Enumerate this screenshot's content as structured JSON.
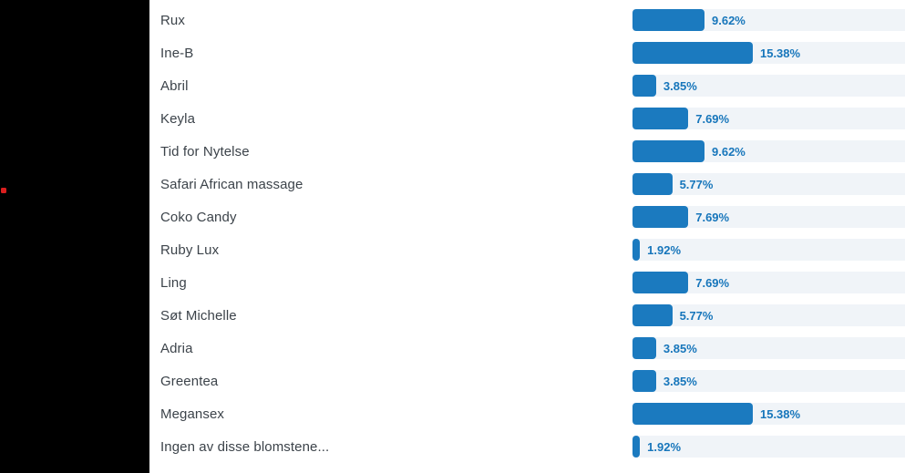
{
  "chart_data": {
    "type": "bar",
    "orientation": "horizontal",
    "title": "",
    "xlabel": "",
    "ylabel": "",
    "legend": false,
    "grid": false,
    "categories": [
      "Rux",
      "Ine-B",
      "Abril",
      "Keyla",
      "Tid for Nytelse",
      "Safari African massage",
      "Coko Candy",
      "Ruby Lux",
      "Ling",
      "Søt Michelle",
      "Adria",
      "Greentea",
      "Megansex",
      "Ingen av disse blomstene..."
    ],
    "values": [
      9.62,
      15.38,
      3.85,
      7.69,
      9.62,
      5.77,
      7.69,
      1.92,
      7.69,
      5.77,
      3.85,
      3.85,
      15.38,
      1.92
    ],
    "value_labels": [
      "9.62%",
      "15.38%",
      "3.85%",
      "7.69%",
      "9.62%",
      "5.77%",
      "7.69%",
      "1.92%",
      "7.69%",
      "5.77%",
      "3.85%",
      "3.85%",
      "15.38%",
      "1.92%"
    ],
    "value_range": [
      0,
      15.38
    ]
  },
  "colors": {
    "bar_fill": "#1b7abf",
    "bar_track": "#f0f4f8",
    "percent_text": "#1776bb",
    "label_text": "#3c434a",
    "sidebar_background": "#000000",
    "red_dot": "#da1e1e",
    "page_background": "#ffffff"
  }
}
